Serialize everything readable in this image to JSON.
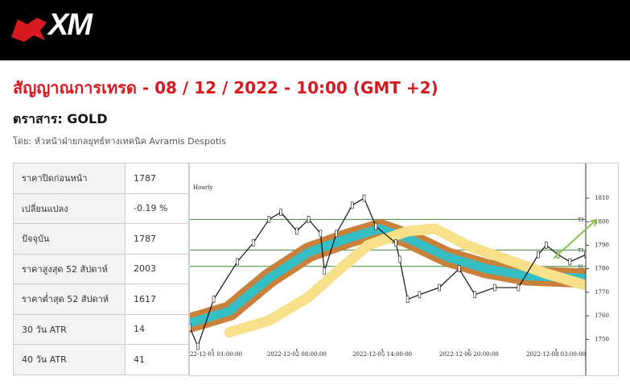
{
  "header": {
    "logo": "XM"
  },
  "title": "สัญญาณการเทรด - 08 / 12 / 2022 - 10:00 (GMT +2)",
  "instrument": "ตราสาร: GOLD",
  "byline": "โดย: หัวหน้าฝ่ายกลยุทธ์ทางเทคนิค Avramis Despotis",
  "table": {
    "rows": [
      [
        "ราคาปิดก่อนหน้า",
        "1787"
      ],
      [
        "เปลี่ยนแปลง",
        "-0.19 %"
      ],
      [
        "ปัจจุบัน",
        "1787"
      ],
      [
        "ราคาสูงสุด 52 สัปดาห์",
        "2003"
      ],
      [
        "ราคาต่ำสุด 52 สัปดาห์",
        "1617"
      ],
      [
        "30 วัน ATR",
        "14"
      ],
      [
        "40 วัน ATR",
        "41"
      ]
    ]
  },
  "chart_data": {
    "type": "line",
    "label": "Hourly",
    "x": [
      0,
      2,
      6,
      12,
      16,
      20,
      23,
      27,
      30,
      33,
      34,
      37,
      41,
      44,
      47,
      52,
      53,
      55,
      58,
      63,
      68,
      72,
      77,
      83,
      88,
      90,
      93,
      96,
      100
    ],
    "series": [
      {
        "color": "#c8803a",
        "inner_color": "#35bfc4",
        "band": true,
        "x": [
          0,
          10,
          20,
          30,
          40,
          48,
          55,
          65,
          75,
          85,
          100
        ],
        "values": [
          1757,
          1762,
          1776,
          1787,
          1793,
          1797,
          1793,
          1785,
          1780,
          1777,
          1776
        ]
      },
      {
        "color": "#f8e08a",
        "band": true,
        "x": [
          10,
          20,
          30,
          38,
          45,
          55,
          62,
          70,
          80,
          90,
          100
        ],
        "values": [
          1753,
          1758,
          1768,
          1780,
          1790,
          1796,
          1797,
          1790,
          1784,
          1778,
          1773
        ]
      },
      {
        "color": "#111111",
        "values": [
          1755,
          1747,
          1767,
          1783,
          1791,
          1801,
          1804,
          1796,
          1801,
          1795,
          1779,
          1795,
          1807,
          1810,
          1798,
          1791,
          1784,
          1767,
          1769,
          1772,
          1780,
          1769,
          1772,
          1772,
          1786,
          1790,
          1786,
          1783,
          1786
        ]
      }
    ],
    "levels": [
      {
        "label": "T2",
        "value": 1801
      },
      {
        "label": "T1",
        "value": 1788
      },
      {
        "label": "SL",
        "value": 1781
      }
    ],
    "level_color": "#3f8f3f",
    "xlim": [
      0,
      100
    ],
    "ylim": [
      1746,
      1822
    ],
    "xticks": [
      {
        "value": 5.7,
        "label": "2022-12-01 01:00:00"
      },
      {
        "value": 27,
        "label": "2022-12-02 08:00:00"
      },
      {
        "value": 48.6,
        "label": "2022-12-05 14:00:00"
      },
      {
        "value": 70.5,
        "label": "2022-12-06 20:00:00"
      },
      {
        "value": 92.5,
        "label": "2022-12-08 03:00:00"
      }
    ],
    "yticks": [
      1750,
      1760,
      1770,
      1780,
      1790,
      1800,
      1810
    ]
  }
}
